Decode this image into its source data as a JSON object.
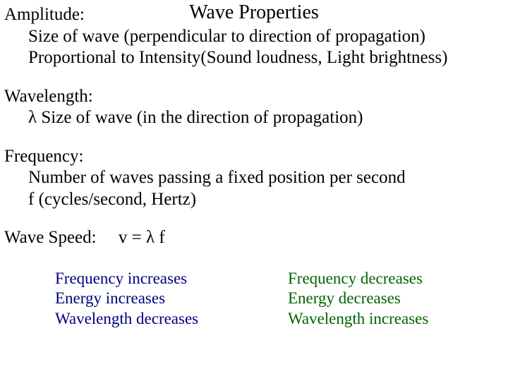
{
  "title": "Wave Properties",
  "amplitude": {
    "term": "Amplitude:",
    "line1": "Size of wave  (perpendicular to direction of propagation)",
    "line2": "Proportional to Intensity(Sound loudness, Light brightness)"
  },
  "wavelength": {
    "term": "Wavelength:",
    "line1": "λ   Size of wave  (in the direction of propagation)"
  },
  "frequency": {
    "term": "Frequency:",
    "line1": "Number of waves passing a fixed position per second",
    "line2": "f   (cycles/second, Hertz)"
  },
  "speed": {
    "label": "Wave Speed:",
    "formula": "v = λ f"
  },
  "left_col": {
    "l1": "Frequency increases",
    "l2": "Energy increases",
    "l3": "Wavelength decreases",
    "color": "#000080"
  },
  "right_col": {
    "l1": "Frequency decreases",
    "l2": "Energy decreases",
    "l3": "Wavelength increases",
    "color": "#006400"
  },
  "styles": {
    "background": "#ffffff",
    "text_color": "#000000",
    "title_fontsize": 28,
    "body_fontsize": 25,
    "col_fontsize": 23,
    "font_family": "Times New Roman"
  }
}
